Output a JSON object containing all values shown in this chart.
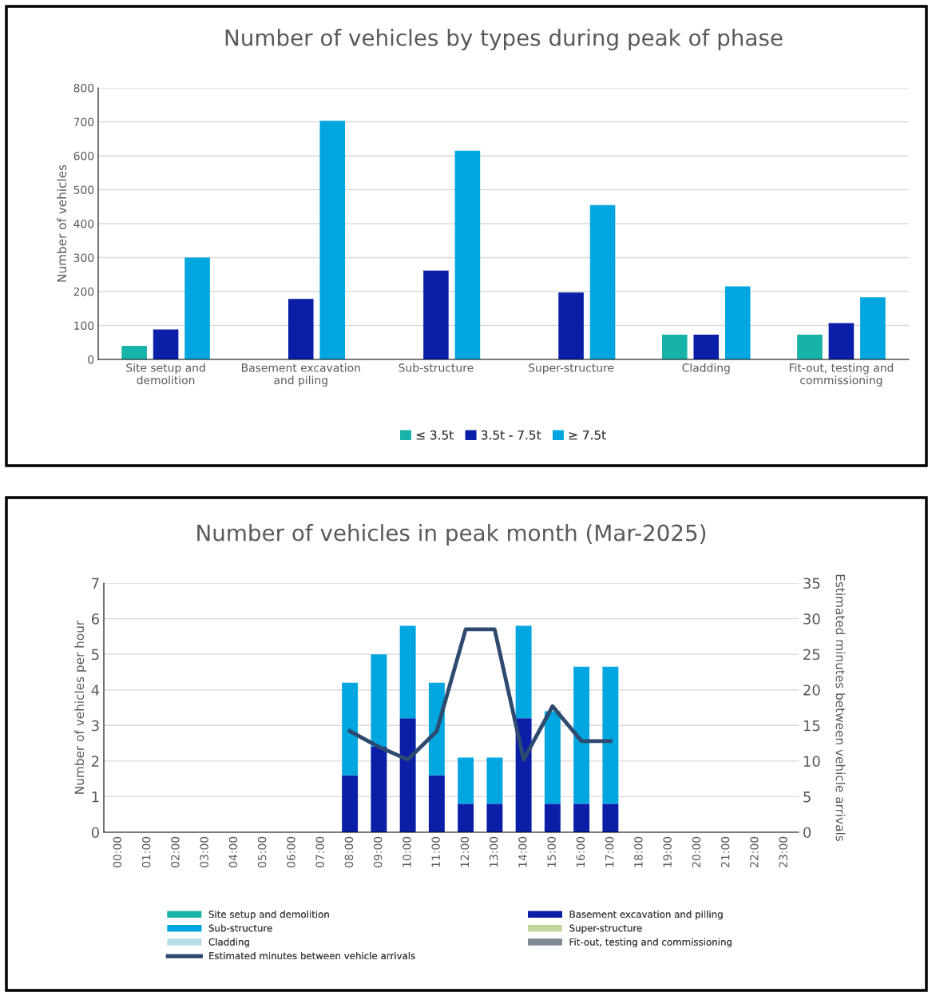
{
  "chart_data": [
    {
      "type": "bar",
      "title": "Number of vehicles by types during peak of phase",
      "ylabel": "Number of vehicles",
      "categories": [
        "Site setup and\ndemolition",
        "Basement excavation\nand piling",
        "Sub-structure",
        "Super-structure",
        "Cladding",
        "Fit-out, testing and\ncommissioning"
      ],
      "series": [
        {
          "name": "≤ 3.5t",
          "color": "#17b2a8",
          "values": [
            40,
            null,
            null,
            null,
            73,
            73
          ]
        },
        {
          "name": "3.5t - 7.5t",
          "color": "#0a1ea8",
          "values": [
            88,
            178,
            262,
            197,
            73,
            107
          ]
        },
        {
          "name": "≥ 7.5t",
          "color": "#00a6e0",
          "values": [
            300,
            703,
            615,
            455,
            215,
            183
          ]
        }
      ],
      "ylim": [
        0,
        800
      ],
      "yticks": [
        0,
        100,
        200,
        300,
        400,
        500,
        600,
        700,
        800
      ],
      "grid": "y",
      "legend": "bottom"
    },
    {
      "type": "bar",
      "stacked": true,
      "title": "Number of vehicles in peak month (Mar-2025)",
      "ylabel": "Number of vehicles per hour",
      "y2label": "Estimated minutes between vehicle arrivals",
      "categories": [
        "00:00",
        "01:00",
        "02:00",
        "03:00",
        "04:00",
        "05:00",
        "06:00",
        "07:00",
        "08:00",
        "09:00",
        "10:00",
        "11:00",
        "12:00",
        "13:00",
        "14:00",
        "15:00",
        "16:00",
        "17:00",
        "18:00",
        "19:00",
        "20:00",
        "21:00",
        "22:00",
        "23:00"
      ],
      "series": [
        {
          "name": "Site setup and demolition",
          "color": "#17b2a8",
          "values": [
            null,
            null,
            null,
            null,
            null,
            null,
            null,
            null,
            null,
            null,
            null,
            null,
            null,
            null,
            null,
            null,
            null,
            null,
            null,
            null,
            null,
            null,
            null,
            null
          ]
        },
        {
          "name": "Basement excavation and pilling",
          "color": "#0a1ea8",
          "values": [
            null,
            null,
            null,
            null,
            null,
            null,
            null,
            null,
            1.6,
            2.4,
            3.2,
            1.6,
            0.8,
            0.8,
            3.2,
            0.8,
            0.8,
            0.8,
            null,
            null,
            null,
            null,
            null,
            null
          ]
        },
        {
          "name": "Sub-structure",
          "color": "#00a6e0",
          "values": [
            null,
            null,
            null,
            null,
            null,
            null,
            null,
            null,
            2.6,
            2.6,
            2.6,
            2.6,
            1.3,
            1.3,
            2.6,
            2.6,
            3.85,
            3.85,
            null,
            null,
            null,
            null,
            null,
            null
          ]
        },
        {
          "name": "Super-structure",
          "color": "#c3d69b",
          "values": [
            null,
            null,
            null,
            null,
            null,
            null,
            null,
            null,
            null,
            null,
            null,
            null,
            null,
            null,
            null,
            null,
            null,
            null,
            null,
            null,
            null,
            null,
            null,
            null
          ]
        },
        {
          "name": "Cladding",
          "color": "#b7dde8",
          "values": [
            null,
            null,
            null,
            null,
            null,
            null,
            null,
            null,
            null,
            null,
            null,
            null,
            null,
            null,
            null,
            null,
            null,
            null,
            null,
            null,
            null,
            null,
            null,
            null
          ]
        },
        {
          "name": "Fit-out, testing and commissioning",
          "color": "#808b96",
          "values": [
            null,
            null,
            null,
            null,
            null,
            null,
            null,
            null,
            null,
            null,
            null,
            null,
            null,
            null,
            null,
            null,
            null,
            null,
            null,
            null,
            null,
            null,
            null,
            null
          ]
        },
        {
          "name": "Estimated minutes between vehicle arrivals",
          "type": "line",
          "axis": "y2",
          "color": "#2e4a6e",
          "values": [
            null,
            null,
            null,
            null,
            null,
            null,
            null,
            null,
            14.2,
            12,
            10.2,
            14.2,
            28.5,
            28.5,
            10.2,
            17.7,
            12.8,
            12.8,
            null,
            null,
            null,
            null,
            null,
            null
          ]
        }
      ],
      "ylim": [
        0,
        7
      ],
      "yticks": [
        0,
        1,
        2,
        3,
        4,
        5,
        6,
        7
      ],
      "y2lim": [
        0,
        35
      ],
      "y2ticks": [
        0,
        5,
        10,
        15,
        20,
        25,
        30,
        35
      ],
      "grid": "y",
      "legend": "bottom"
    }
  ]
}
